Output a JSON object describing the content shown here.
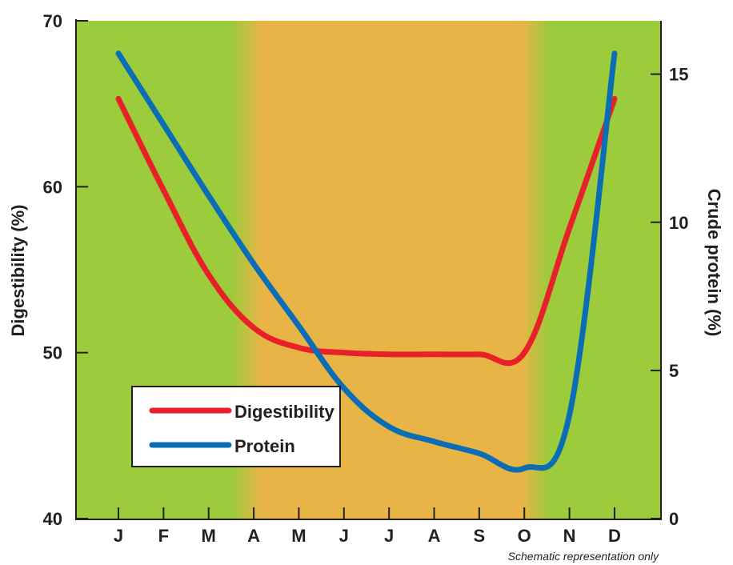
{
  "chart_data": {
    "type": "line",
    "categories": [
      "J",
      "F",
      "M",
      "A",
      "M",
      "J",
      "J",
      "A",
      "S",
      "O",
      "N",
      "D"
    ],
    "y_left": {
      "label": "Digestibility (%)",
      "range": [
        40,
        70
      ],
      "ticks": [
        40,
        50,
        60,
        70
      ]
    },
    "y_right": {
      "label": "Crude protein (%)",
      "range": [
        0,
        16.8
      ],
      "ticks": [
        0,
        5,
        10,
        15
      ]
    },
    "series": [
      {
        "name": "Digestibility",
        "axis": "left",
        "color": "#e8202a",
        "values": [
          65.3,
          59.8,
          54.7,
          51.5,
          50.3,
          50.0,
          49.9,
          49.9,
          49.9,
          50.0,
          57.5,
          65.3
        ]
      },
      {
        "name": "Protein",
        "axis": "right",
        "color": "#0b6db5",
        "values": [
          15.7,
          13.3,
          10.9,
          8.6,
          6.5,
          4.4,
          3.1,
          2.6,
          2.2,
          1.7,
          3.5,
          15.7
        ]
      }
    ],
    "background_bands": [
      {
        "season": "green",
        "color": "#9ccb3b"
      },
      {
        "season": "dry",
        "color": "#e9b446"
      }
    ],
    "legend": {
      "position": "bottom-left",
      "entries": [
        "Digestibility",
        "Protein"
      ]
    },
    "note": "Schematic representation only",
    "grid": false
  }
}
